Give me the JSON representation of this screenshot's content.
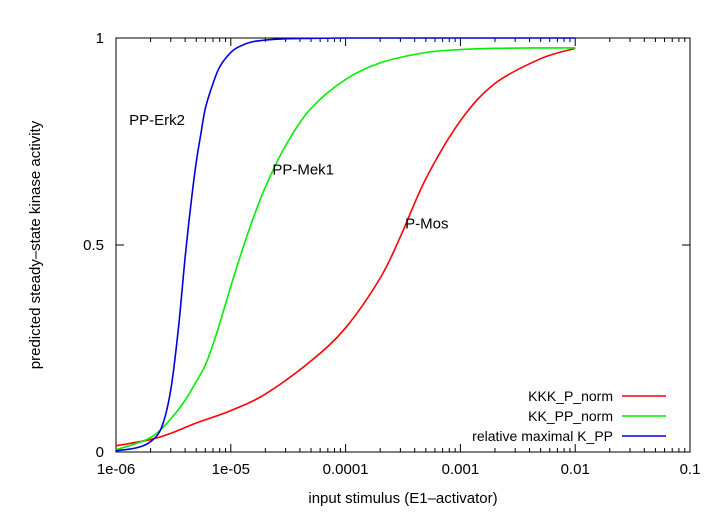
{
  "chart_data": {
    "type": "line",
    "xscale": "log",
    "xlabel": "input stimulus (E1–activator)",
    "ylabel": "predicted steady–state kinase activity",
    "xlim": [
      1e-06,
      0.1
    ],
    "ylim": [
      0,
      1
    ],
    "xticks": [
      {
        "value": 1e-06,
        "label": "1e-06"
      },
      {
        "value": 1e-05,
        "label": "1e-05"
      },
      {
        "value": 0.0001,
        "label": "0.0001"
      },
      {
        "value": 0.001,
        "label": "0.001"
      },
      {
        "value": 0.01,
        "label": "0.01"
      },
      {
        "value": 0.1,
        "label": "0.1"
      }
    ],
    "yticks": [
      {
        "value": 0,
        "label": "0"
      },
      {
        "value": 0.5,
        "label": "0.5"
      },
      {
        "value": 1,
        "label": "1"
      }
    ],
    "grid": false,
    "legend_position": "bottom-right",
    "series": [
      {
        "name": "KKK_P_norm",
        "color": "#ff0000",
        "x": [
          1e-06,
          2e-06,
          3e-06,
          5e-06,
          1e-05,
          2e-05,
          5e-05,
          0.0001,
          0.0002,
          0.0003,
          0.0005,
          0.001,
          0.002,
          0.005,
          0.01
        ],
        "y": [
          0.015,
          0.03,
          0.045,
          0.07,
          0.1,
          0.14,
          0.22,
          0.3,
          0.42,
          0.52,
          0.66,
          0.8,
          0.89,
          0.95,
          0.975
        ]
      },
      {
        "name": "KK_PP_norm",
        "color": "#00ee00",
        "x": [
          1e-06,
          2e-06,
          3e-06,
          4e-06,
          5e-06,
          6e-06,
          7e-06,
          8e-06,
          1e-05,
          1.2e-05,
          1.5e-05,
          2e-05,
          3e-05,
          5e-05,
          0.0001,
          0.0002,
          0.0005,
          0.001,
          0.002,
          0.005,
          0.01
        ],
        "y": [
          0.005,
          0.035,
          0.08,
          0.125,
          0.17,
          0.21,
          0.26,
          0.31,
          0.4,
          0.47,
          0.55,
          0.64,
          0.74,
          0.83,
          0.9,
          0.94,
          0.965,
          0.972,
          0.975,
          0.976,
          0.976
        ]
      },
      {
        "name": "relative maximal K_PP",
        "color": "#0000dd",
        "x": [
          1e-06,
          1.5e-06,
          2e-06,
          2.5e-06,
          3e-06,
          3.5e-06,
          4e-06,
          4.5e-06,
          5e-06,
          5.5e-06,
          6e-06,
          7e-06,
          8e-06,
          1e-05,
          1.2e-05,
          1.5e-05,
          2e-05,
          3e-05,
          5e-05,
          0.0001,
          0.0003,
          0.001,
          0.01
        ],
        "y": [
          0.003,
          0.01,
          0.025,
          0.06,
          0.15,
          0.3,
          0.47,
          0.6,
          0.7,
          0.77,
          0.83,
          0.89,
          0.93,
          0.965,
          0.98,
          0.99,
          0.995,
          0.998,
          0.999,
          1.0,
          1.0,
          1.0,
          1.0
        ]
      }
    ],
    "annotations": [
      {
        "text": "PP-Erk2",
        "x": 1.3e-06,
        "y": 0.79
      },
      {
        "text": "PP-Mek1",
        "x": 2.3e-05,
        "y": 0.67
      },
      {
        "text": "P-Mos",
        "x": 0.00033,
        "y": 0.54
      }
    ]
  }
}
